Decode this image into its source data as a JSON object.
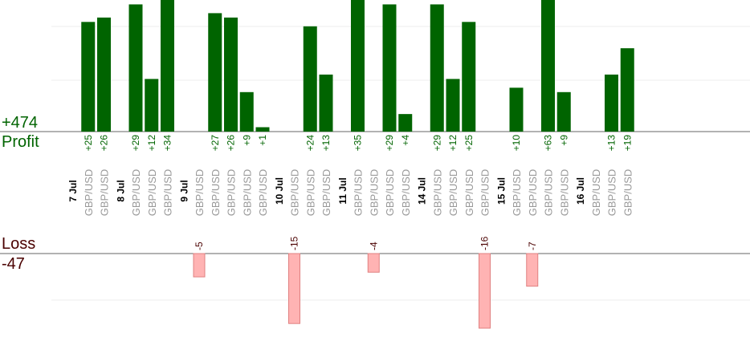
{
  "profit_panel": {
    "total": "+474",
    "label": "Profit"
  },
  "loss_panel": {
    "total": "-47",
    "label": "Loss"
  },
  "colors": {
    "profit_bar": "#006400",
    "profit_text": "#006400",
    "loss_fill": "#ffb3b3",
    "loss_stroke": "#e08080",
    "loss_text": "#4a0000",
    "pair_text": "#999999",
    "date_text": "#000000",
    "grid": "#eeeeee",
    "baseline": "#666666"
  },
  "chart_data": {
    "type": "bar",
    "series": [
      {
        "name": "Profit",
        "values": [
          25,
          26,
          null,
          29,
          12,
          34,
          null,
          null,
          27,
          26,
          9,
          1,
          null,
          null,
          24,
          13,
          null,
          null,
          35,
          null,
          29,
          4,
          null,
          29,
          12,
          25,
          null,
          null,
          10,
          null,
          63,
          9,
          null,
          null,
          13,
          19
        ]
      },
      {
        "name": "Loss",
        "values": [
          null,
          null,
          null,
          null,
          null,
          null,
          null,
          -5,
          null,
          null,
          null,
          null,
          null,
          -15,
          null,
          null,
          null,
          null,
          null,
          -4,
          null,
          null,
          null,
          null,
          null,
          null,
          -16,
          null,
          null,
          -7,
          null,
          null,
          null,
          null,
          null,
          null
        ]
      }
    ],
    "slots": [
      {
        "date": "7 Jul"
      },
      {
        "pair": "GBP/USD",
        "value": 25
      },
      {
        "pair": "GBP/USD",
        "value": 26
      },
      {
        "date": "8 Jul"
      },
      {
        "pair": "GBP/USD",
        "value": 29
      },
      {
        "pair": "GBP/USD",
        "value": 12
      },
      {
        "pair": "GBP/USD",
        "value": 34
      },
      {
        "date": "9 Jul"
      },
      {
        "pair": "GBP/USD",
        "value": -5
      },
      {
        "pair": "GBP/USD",
        "value": 27
      },
      {
        "pair": "GBP/USD",
        "value": 26
      },
      {
        "pair": "GBP/USD",
        "value": 9
      },
      {
        "pair": "GBP/USD",
        "value": 1
      },
      {
        "date": "10 Jul"
      },
      {
        "pair": "GBP/USD",
        "value": -15
      },
      {
        "pair": "GBP/USD",
        "value": 24
      },
      {
        "pair": "GBP/USD",
        "value": 13
      },
      {
        "date": "11 Jul"
      },
      {
        "pair": "GBP/USD",
        "value": 35
      },
      {
        "pair": "GBP/USD",
        "value": -4
      },
      {
        "pair": "GBP/USD",
        "value": 29
      },
      {
        "pair": "GBP/USD",
        "value": 4
      },
      {
        "date": "14 Jul"
      },
      {
        "pair": "GBP/USD",
        "value": 29
      },
      {
        "pair": "GBP/USD",
        "value": 12
      },
      {
        "pair": "GBP/USD",
        "value": 25
      },
      {
        "pair": "GBP/USD",
        "value": -16
      },
      {
        "date": "15 Jul"
      },
      {
        "pair": "GBP/USD",
        "value": 10
      },
      {
        "pair": "GBP/USD",
        "value": -7
      },
      {
        "pair": "GBP/USD",
        "value": 63
      },
      {
        "pair": "GBP/USD",
        "value": 9
      },
      {
        "date": "16 Jul"
      },
      {
        "pair": "GBP/USD",
        "value": null
      },
      {
        "pair": "GBP/USD",
        "value": 13
      },
      {
        "pair": "GBP/USD",
        "value": 19
      }
    ],
    "profit_axis": {
      "range": [
        0,
        30
      ],
      "grid": true
    },
    "loss_axis": {
      "range": [
        -16,
        0
      ],
      "grid": true
    }
  }
}
